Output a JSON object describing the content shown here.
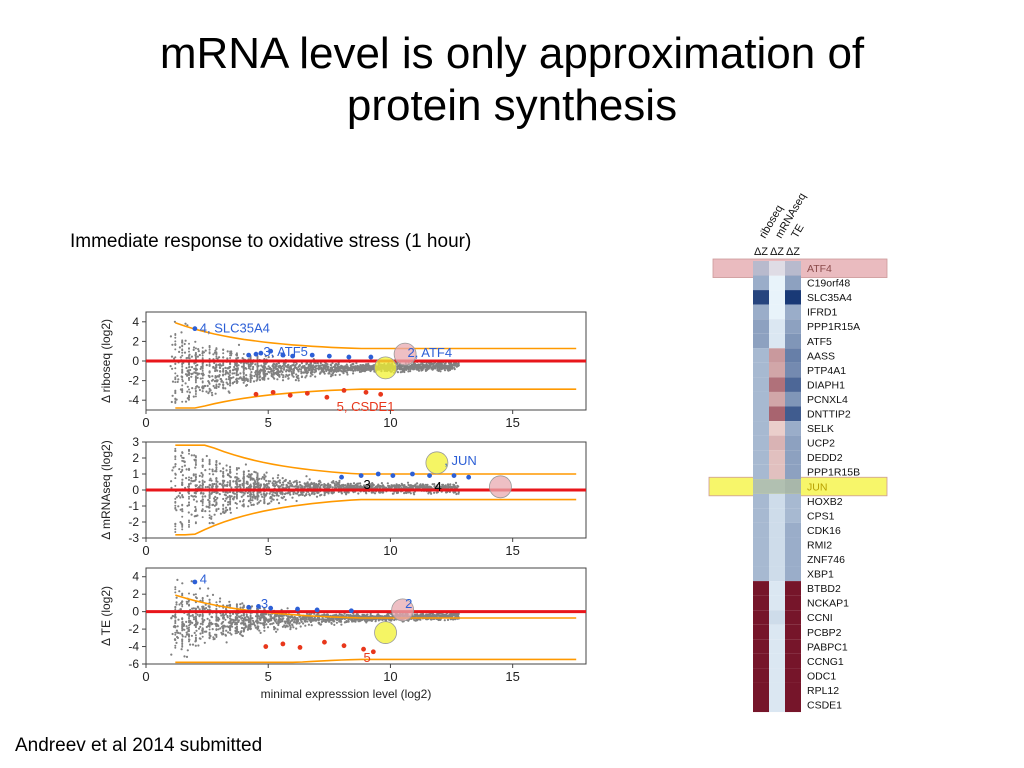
{
  "slide": {
    "title_lines": [
      "mRNA level is only approximation of",
      "protein synthesis"
    ],
    "subtitle": "Immediate response to oxidative stress (1 hour)",
    "citation": "Andreev et al 2014 submitted"
  },
  "colors": {
    "threshold_line": "#ff9900",
    "zero_line": "#e8161b",
    "up_points": "#2c5fd6",
    "down_points": "#e8371b",
    "bulk_points": "#808080",
    "highlight_yellow": "#f2f230",
    "highlight_pink": "#e8aab0",
    "heatmap_row_highlight_atf4": "#e8b4b8",
    "heatmap_row_highlight_jun": "#f6f55a"
  },
  "chart_data": [
    {
      "type": "scatter",
      "id": "ribo",
      "ylabel": "Δ riboseq (log2)",
      "xlabel": "",
      "xlim": [
        0,
        18
      ],
      "ylim": [
        -5,
        5
      ],
      "xticks": [
        0,
        5,
        10,
        15
      ],
      "yticks": [
        4,
        2,
        0,
        -2,
        -4
      ],
      "threshold_offsets": [
        1,
        -1
      ],
      "up_points": [
        [
          2.0,
          3.3
        ],
        [
          4.2,
          0.6
        ],
        [
          4.5,
          0.7
        ],
        [
          4.7,
          0.8
        ],
        [
          5.1,
          1.0
        ],
        [
          5.6,
          0.6
        ],
        [
          6.0,
          0.5
        ],
        [
          6.8,
          0.6
        ],
        [
          7.5,
          0.5
        ],
        [
          8.3,
          0.4
        ],
        [
          9.2,
          0.4
        ]
      ],
      "down_points": [
        [
          4.5,
          -3.4
        ],
        [
          5.2,
          -3.2
        ],
        [
          5.9,
          -3.5
        ],
        [
          6.6,
          -3.3
        ],
        [
          7.4,
          -3.7
        ],
        [
          8.1,
          -3.0
        ],
        [
          9.0,
          -3.2
        ],
        [
          9.6,
          -3.4
        ]
      ],
      "annotations": [
        {
          "text": "4, SLC35A4",
          "x": 2.2,
          "y": 3.3,
          "color": "#2c5fd6"
        },
        {
          "text": "3, ATF5",
          "x": 4.8,
          "y": 0.9,
          "color": "#2c5fd6"
        },
        {
          "text": "2, ATF4",
          "x": 10.7,
          "y": 0.8,
          "color": "#2c5fd6"
        },
        {
          "text": "5, CSDE1",
          "x": 7.8,
          "y": -4.7,
          "color": "#e8371b"
        }
      ],
      "highlights": [
        {
          "x": 9.8,
          "y": -0.7,
          "color": "yellow"
        },
        {
          "x": 10.6,
          "y": 0.7,
          "color": "pink"
        }
      ]
    },
    {
      "type": "scatter",
      "id": "mrna",
      "ylabel": "Δ mRNAseq (log2)",
      "xlabel": "",
      "xlim": [
        0,
        18
      ],
      "ylim": [
        -3,
        3
      ],
      "xticks": [
        0,
        5,
        10,
        15
      ],
      "yticks": [
        3,
        2,
        1,
        0,
        -1,
        -2,
        -3
      ],
      "threshold_offsets": [
        0.7,
        -0.3
      ],
      "up_points": [
        [
          8.8,
          0.9
        ],
        [
          9.5,
          1.0
        ],
        [
          10.1,
          0.9
        ],
        [
          10.9,
          1.0
        ],
        [
          11.6,
          0.9
        ],
        [
          12.6,
          0.9
        ],
        [
          13.2,
          0.8
        ],
        [
          8.0,
          0.8
        ]
      ],
      "down_points": [],
      "annotations": [
        {
          "text": ", JUN",
          "x": 12.2,
          "y": 1.8,
          "color": "#2c5fd6"
        },
        {
          "text": "3",
          "x": 8.9,
          "y": 0.3,
          "color": "#000000"
        },
        {
          "text": "4",
          "x": 11.8,
          "y": 0.2,
          "color": "#000000"
        }
      ],
      "highlights": [
        {
          "x": 11.9,
          "y": 1.7,
          "color": "yellow"
        },
        {
          "x": 14.5,
          "y": 0.2,
          "color": "pink"
        }
      ]
    },
    {
      "type": "scatter",
      "id": "te",
      "ylabel": "Δ TE (log2)",
      "xlabel": "minimal expresssion level (log2)",
      "xlim": [
        0,
        18
      ],
      "ylim": [
        -6,
        5
      ],
      "xticks": [
        0,
        5,
        10,
        15
      ],
      "yticks": [
        4,
        2,
        0,
        -2,
        -4,
        -6
      ],
      "threshold_offsets": [
        -1,
        -3.6
      ],
      "up_points": [
        [
          2.0,
          3.4
        ],
        [
          4.2,
          0.5
        ],
        [
          4.6,
          0.6
        ],
        [
          5.1,
          0.4
        ],
        [
          6.2,
          0.3
        ],
        [
          7.0,
          0.2
        ],
        [
          8.4,
          0.1
        ]
      ],
      "down_points": [
        [
          4.9,
          -4.0
        ],
        [
          5.6,
          -3.7
        ],
        [
          6.3,
          -4.1
        ],
        [
          7.3,
          -3.5
        ],
        [
          8.1,
          -3.9
        ],
        [
          8.9,
          -4.3
        ],
        [
          9.3,
          -4.6
        ]
      ],
      "annotations": [
        {
          "text": "4",
          "x": 2.2,
          "y": 3.7,
          "color": "#2c5fd6"
        },
        {
          "text": "3",
          "x": 4.7,
          "y": 0.9,
          "color": "#2c5fd6"
        },
        {
          "text": "2",
          "x": 10.6,
          "y": 0.9,
          "color": "#2c5fd6"
        },
        {
          "text": "5",
          "x": 8.9,
          "y": -5.3,
          "color": "#e8371b"
        }
      ],
      "highlights": [
        {
          "x": 9.8,
          "y": -2.4,
          "color": "yellow"
        },
        {
          "x": 10.5,
          "y": 0.2,
          "color": "pink"
        }
      ]
    },
    {
      "type": "heatmap",
      "id": "heatmap",
      "columns": [
        "riboseq",
        "mRNAseq",
        "TE"
      ],
      "column_subheaders": [
        "ΔZ",
        "ΔZ",
        "ΔZ"
      ],
      "rows": [
        "ATF4",
        "C19orf48",
        "SLC35A4",
        "IFRD1",
        "PPP1R15A",
        "ATF5",
        "AASS",
        "PTP4A1",
        "DIAPH1",
        "PCNXL4",
        "DNTTIP2",
        "SELK",
        "UCP2",
        "DEDD2",
        "PPP1R15B",
        "JUN",
        "HOXB2",
        "CPS1",
        "CDK16",
        "RMI2",
        "ZNF746",
        "XBP1",
        "BTBD2",
        "NCKAP1",
        "CCNI",
        "PCBP2",
        "PABPC1",
        "CCNG1",
        "ODC1",
        "RPL12",
        "CSDE1"
      ],
      "highlighted_rows": {
        "ATF4": "pink",
        "JUN": "yellow"
      },
      "values": [
        [
          0.5,
          0.1,
          0.5
        ],
        [
          0.6,
          0.0,
          0.7
        ],
        [
          1.5,
          0.0,
          1.6
        ],
        [
          0.6,
          0.0,
          0.6
        ],
        [
          0.7,
          0.1,
          0.7
        ],
        [
          0.7,
          0.1,
          0.8
        ],
        [
          0.5,
          -0.6,
          1.0
        ],
        [
          0.5,
          -0.5,
          0.9
        ],
        [
          0.5,
          -0.9,
          1.2
        ],
        [
          0.5,
          -0.5,
          0.8
        ],
        [
          0.5,
          -1.0,
          1.3
        ],
        [
          0.5,
          -0.2,
          0.6
        ],
        [
          0.5,
          -0.4,
          0.7
        ],
        [
          0.5,
          -0.3,
          0.7
        ],
        [
          0.5,
          -0.3,
          0.7
        ],
        [
          0.6,
          0.6,
          0.7
        ],
        [
          0.5,
          0.2,
          0.5
        ],
        [
          0.5,
          0.2,
          0.5
        ],
        [
          0.5,
          0.2,
          0.6
        ],
        [
          0.5,
          0.2,
          0.6
        ],
        [
          0.5,
          0.2,
          0.6
        ],
        [
          0.5,
          0.2,
          0.6
        ],
        [
          -1.6,
          0.1,
          -1.6
        ],
        [
          -1.6,
          0.1,
          -1.6
        ],
        [
          -1.6,
          0.2,
          -1.6
        ],
        [
          -1.6,
          0.1,
          -1.6
        ],
        [
          -1.6,
          0.1,
          -1.6
        ],
        [
          -1.6,
          0.1,
          -1.6
        ],
        [
          -1.6,
          0.1,
          -1.6
        ],
        [
          -1.6,
          0.1,
          -1.6
        ],
        [
          -1.6,
          0.1,
          -1.6
        ]
      ],
      "note": ""
    }
  ]
}
